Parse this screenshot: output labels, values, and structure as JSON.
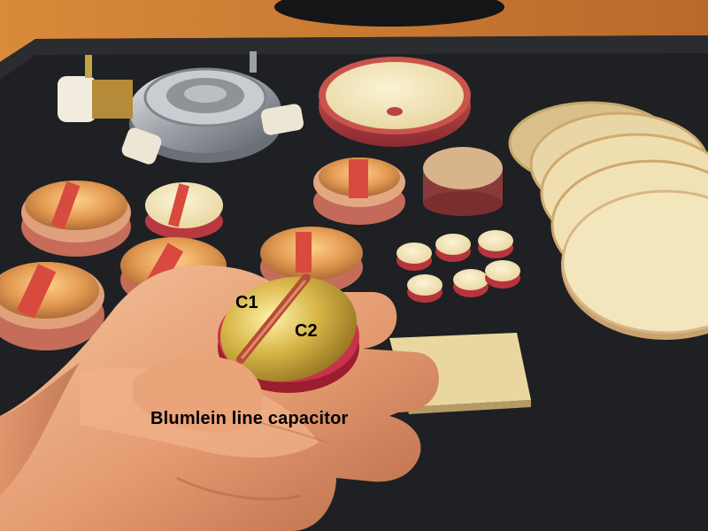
{
  "labels": {
    "c1": "C1",
    "c2": "C2",
    "caption": "Blumlein line capacitor"
  },
  "colors": {
    "table_mat": "#1f2124",
    "ceramic": "#f1e3b8",
    "ceramic_rim": "#c44a4a",
    "gold_electrode": "#c9a63a",
    "skin": "#e8a67e",
    "label_text": "#000000"
  }
}
